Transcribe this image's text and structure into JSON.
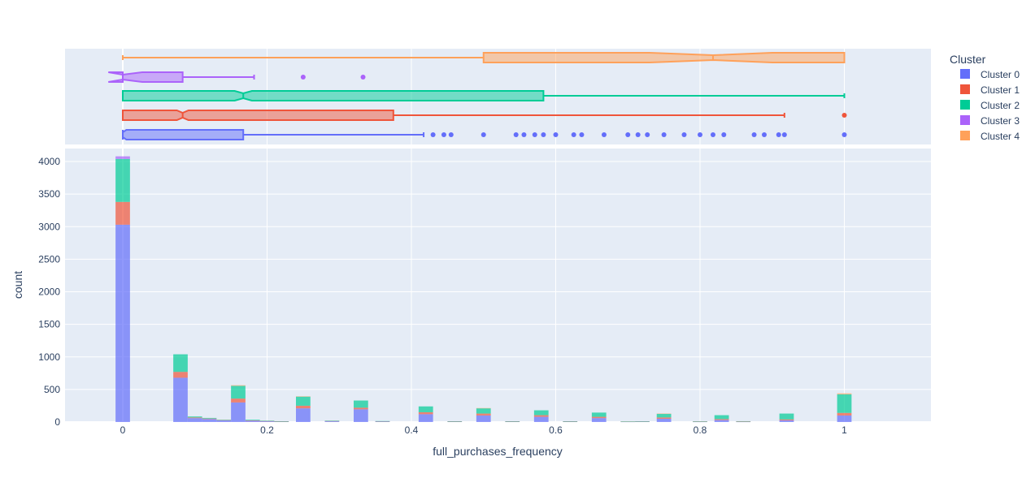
{
  "chart_data": {
    "type": "bar",
    "barmode": "stack",
    "marginal": "box",
    "xlabel": "full_purchases_frequency",
    "ylabel": "count",
    "xlim": [
      -0.08,
      1.12
    ],
    "ylim": [
      0,
      4200
    ],
    "x_ticks": [
      0,
      0.2,
      0.4,
      0.6,
      0.8,
      1
    ],
    "x_tick_labels": [
      "0",
      "0.2",
      "0.4",
      "0.6",
      "0.8",
      "1"
    ],
    "y_ticks": [
      0,
      500,
      1000,
      1500,
      2000,
      2500,
      3000,
      3500,
      4000
    ],
    "y_tick_labels": [
      "0",
      "500",
      "1000",
      "1500",
      "2000",
      "2500",
      "3000",
      "3500",
      "4000"
    ],
    "grid": true,
    "bin_width": 0.02,
    "legend": {
      "title": "Cluster",
      "placement": "top-right",
      "entries": [
        "Cluster 0",
        "Cluster 1",
        "Cluster 2",
        "Cluster 3",
        "Cluster 4"
      ]
    },
    "colors": [
      "#636efa",
      "#EF553B",
      "#00cc96",
      "#ab63fa",
      "#FFA15A"
    ],
    "bins": [
      0,
      0.08,
      0.1,
      0.12,
      0.14,
      0.16,
      0.18,
      0.2,
      0.22,
      0.25,
      0.29,
      0.33,
      0.36,
      0.42,
      0.46,
      0.5,
      0.54,
      0.58,
      0.62,
      0.66,
      0.7,
      0.72,
      0.75,
      0.8,
      0.83,
      0.86,
      0.92,
      1.0
    ],
    "series": [
      {
        "name": "Cluster 0",
        "values": [
          3030,
          680,
          60,
          45,
          25,
          300,
          20,
          12,
          6,
          210,
          12,
          195,
          8,
          120,
          6,
          100,
          6,
          80,
          6,
          60,
          5,
          6,
          50,
          5,
          30,
          5,
          25,
          100
        ]
      },
      {
        "name": "Cluster 1",
        "values": [
          350,
          90,
          10,
          8,
          5,
          60,
          5,
          4,
          2,
          40,
          5,
          25,
          3,
          30,
          2,
          30,
          2,
          25,
          2,
          20,
          2,
          3,
          20,
          2,
          15,
          2,
          15,
          40
        ]
      },
      {
        "name": "Cluster 2",
        "values": [
          660,
          270,
          15,
          10,
          5,
          195,
          10,
          6,
          4,
          140,
          4,
          110,
          4,
          90,
          4,
          80,
          4,
          75,
          4,
          65,
          2,
          2,
          55,
          4,
          60,
          6,
          90,
          285
        ]
      },
      {
        "name": "Cluster 3",
        "values": [
          40,
          0,
          0,
          0,
          0,
          0,
          0,
          0,
          0,
          0,
          0,
          0,
          0,
          0,
          0,
          0,
          0,
          0,
          0,
          0,
          0,
          0,
          0,
          0,
          0,
          0,
          0,
          0
        ]
      },
      {
        "name": "Cluster 4",
        "values": [
          0,
          0,
          0,
          0,
          0,
          10,
          0,
          0,
          0,
          5,
          0,
          0,
          0,
          0,
          0,
          5,
          0,
          0,
          0,
          0,
          0,
          0,
          5,
          0,
          0,
          0,
          0,
          15
        ]
      }
    ],
    "box_series": [
      {
        "name": "Cluster 0",
        "min": 0,
        "q1": 0,
        "median": 0,
        "q3": 0.167,
        "max": 0.417,
        "notch": [
          0,
          0.005
        ],
        "outliers": [
          0.43,
          0.445,
          0.455,
          0.5,
          0.545,
          0.556,
          0.571,
          0.583,
          0.6,
          0.625,
          0.636,
          0.667,
          0.7,
          0.714,
          0.727,
          0.75,
          0.778,
          0.8,
          0.818,
          0.833,
          0.875,
          0.889,
          0.909,
          0.917,
          1.0
        ]
      },
      {
        "name": "Cluster 1",
        "min": 0,
        "q1": 0,
        "median": 0.083,
        "q3": 0.375,
        "max": 0.917,
        "notch": [
          0.075,
          0.091
        ],
        "outliers": [
          1.0
        ]
      },
      {
        "name": "Cluster 2",
        "min": 0,
        "q1": 0,
        "median": 0.167,
        "q3": 0.583,
        "max": 1.0,
        "notch": [
          0.155,
          0.179
        ],
        "outliers": []
      },
      {
        "name": "Cluster 3",
        "min": 0,
        "q1": 0,
        "median": 0,
        "q3": 0.083,
        "max": 0.182,
        "notch": [
          -0.02,
          0.027
        ],
        "outliers": [
          0.25,
          0.333
        ]
      },
      {
        "name": "Cluster 4",
        "min": 0,
        "q1": 0.5,
        "median": 0.818,
        "q3": 1.0,
        "max": 1.0,
        "notch": [
          0.73,
          0.9
        ],
        "outliers": []
      }
    ]
  }
}
